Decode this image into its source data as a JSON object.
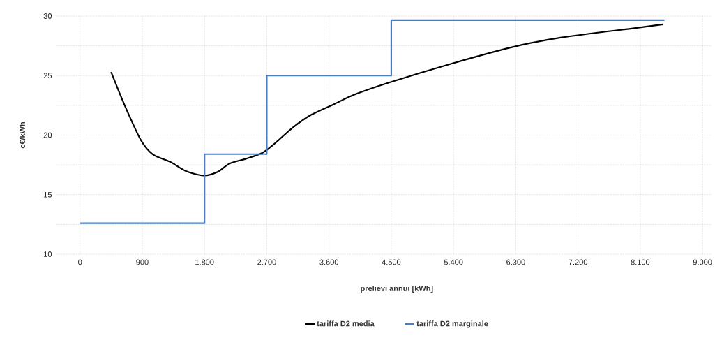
{
  "chart_data": {
    "type": "line",
    "xlabel": "prelievi annui [kWh]",
    "ylabel": "c€/kWh",
    "xlim": [
      -350,
      9130
    ],
    "ylim": [
      10,
      30
    ],
    "xticks": [
      0,
      900,
      {
        "value": 1800,
        "label": "1.800"
      },
      {
        "value": 2700,
        "label": "2.700"
      },
      {
        "value": 3600,
        "label": "3.600"
      },
      {
        "value": 4500,
        "label": "4.500"
      },
      {
        "value": 5400,
        "label": "5.400"
      },
      {
        "value": 6300,
        "label": "6.300"
      },
      {
        "value": 7200,
        "label": "7.200"
      },
      {
        "value": 8100,
        "label": "8.100"
      },
      {
        "value": 9000,
        "label": "9.000"
      }
    ],
    "yticks": [
      10,
      {
        "value": 12.5,
        "label": null
      },
      15,
      {
        "value": 17.5,
        "label": null
      },
      20,
      {
        "value": 22.5,
        "label": null
      },
      25,
      {
        "value": 27.5,
        "label": null
      },
      30
    ],
    "grid": true,
    "legend": "bottom",
    "series": [
      {
        "name": "tariffa D2 media",
        "color": "#000000",
        "x": [
          450,
          646,
          878,
          1049,
          1321,
          1523,
          1786,
          1988,
          2159,
          2391,
          2634,
          2836,
          3068,
          3340,
          3673,
          3966,
          4460,
          5368,
          6256,
          6963,
          8032,
          8426
        ],
        "values": [
          25.3,
          22.5,
          19.6,
          18.4,
          17.7,
          17.0,
          16.6,
          16.9,
          17.6,
          18.0,
          18.5,
          19.4,
          20.6,
          21.7,
          22.6,
          23.4,
          24.4,
          26.0,
          27.4,
          28.2,
          29.0,
          29.3
        ]
      },
      {
        "name": "tariffa D2 marginale",
        "type": "step",
        "color": "#4a7ebf",
        "x": [
          0,
          1800,
          2700,
          4500,
          8450
        ],
        "values": [
          12.6,
          18.4,
          25.0,
          29.65,
          29.65
        ]
      }
    ]
  }
}
